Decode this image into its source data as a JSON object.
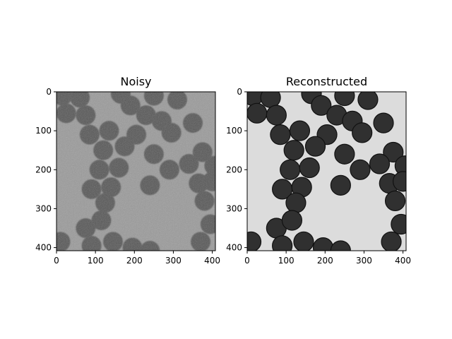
{
  "figure": {
    "panels": [
      {
        "title": "Noisy",
        "background_gray": "#9a9a9a",
        "cell_gray": "#575757"
      },
      {
        "title": "Reconstructed",
        "background_gray": "#dcdcdc",
        "cell_gray": "#303030"
      }
    ]
  },
  "chart_data": [
    {
      "type": "image",
      "title": "Noisy",
      "xlabel": "",
      "ylabel": "",
      "xlim": [
        0,
        408
      ],
      "ylim": [
        408,
        0
      ],
      "xticks": [
        0,
        100,
        200,
        300,
        400
      ],
      "yticks": [
        0,
        100,
        200,
        300,
        400
      ],
      "content": "grayscale noisy micrograph of round cells",
      "cell_centers": [
        [
          15,
          10
        ],
        [
          60,
          15
        ],
        [
          165,
          5
        ],
        [
          25,
          55
        ],
        [
          75,
          60
        ],
        [
          190,
          35
        ],
        [
          250,
          10
        ],
        [
          310,
          20
        ],
        [
          230,
          60
        ],
        [
          270,
          75
        ],
        [
          85,
          110
        ],
        [
          135,
          100
        ],
        [
          205,
          110
        ],
        [
          295,
          105
        ],
        [
          350,
          80
        ],
        [
          120,
          150
        ],
        [
          175,
          140
        ],
        [
          250,
          160
        ],
        [
          375,
          155
        ],
        [
          110,
          200
        ],
        [
          160,
          195
        ],
        [
          240,
          240
        ],
        [
          290,
          200
        ],
        [
          340,
          185
        ],
        [
          405,
          190
        ],
        [
          90,
          250
        ],
        [
          140,
          245
        ],
        [
          365,
          235
        ],
        [
          400,
          230
        ],
        [
          125,
          285
        ],
        [
          380,
          280
        ],
        [
          75,
          350
        ],
        [
          115,
          330
        ],
        [
          395,
          340
        ],
        [
          10,
          385
        ],
        [
          90,
          395
        ],
        [
          145,
          385
        ],
        [
          195,
          400
        ],
        [
          240,
          408
        ],
        [
          370,
          385
        ]
      ]
    },
    {
      "type": "image",
      "title": "Reconstructed",
      "xlabel": "",
      "ylabel": "",
      "xlim": [
        0,
        408
      ],
      "ylim": [
        408,
        0
      ],
      "xticks": [
        0,
        100,
        200,
        300,
        400
      ],
      "yticks": [
        0,
        100,
        200,
        300,
        400
      ],
      "content": "denoised grayscale micrograph of round cells",
      "cell_centers": [
        [
          15,
          10
        ],
        [
          60,
          15
        ],
        [
          165,
          5
        ],
        [
          25,
          55
        ],
        [
          75,
          60
        ],
        [
          190,
          35
        ],
        [
          250,
          10
        ],
        [
          310,
          20
        ],
        [
          230,
          60
        ],
        [
          270,
          75
        ],
        [
          85,
          110
        ],
        [
          135,
          100
        ],
        [
          205,
          110
        ],
        [
          295,
          105
        ],
        [
          350,
          80
        ],
        [
          120,
          150
        ],
        [
          175,
          140
        ],
        [
          250,
          160
        ],
        [
          375,
          155
        ],
        [
          110,
          200
        ],
        [
          160,
          195
        ],
        [
          240,
          240
        ],
        [
          290,
          200
        ],
        [
          340,
          185
        ],
        [
          405,
          190
        ],
        [
          90,
          250
        ],
        [
          140,
          245
        ],
        [
          365,
          235
        ],
        [
          400,
          230
        ],
        [
          125,
          285
        ],
        [
          380,
          280
        ],
        [
          75,
          350
        ],
        [
          115,
          330
        ],
        [
          395,
          340
        ],
        [
          10,
          385
        ],
        [
          90,
          395
        ],
        [
          145,
          385
        ],
        [
          195,
          400
        ],
        [
          240,
          408
        ],
        [
          370,
          385
        ]
      ]
    }
  ]
}
